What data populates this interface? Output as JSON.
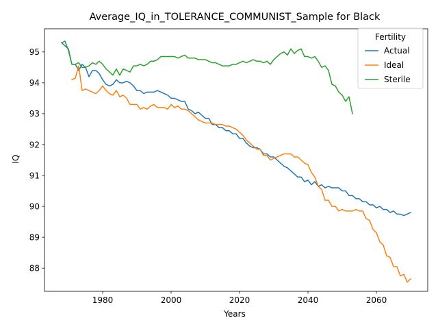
{
  "chart_data": {
    "type": "line",
    "title": "Average_IQ_in_TOLERANCE_COMMUNIST_Sample for Black",
    "xlabel": "Years",
    "ylabel": "IQ",
    "xlim": [
      1963,
      2075
    ],
    "ylim": [
      87.25,
      95.75
    ],
    "xticks": [
      1980,
      2000,
      2020,
      2040,
      2060
    ],
    "yticks": [
      88,
      89,
      90,
      91,
      92,
      93,
      94,
      95
    ],
    "grid": false,
    "legend": {
      "title": "Fertility",
      "position": "top-right"
    },
    "series": [
      {
        "name": "Actual",
        "color": "#1f77b4",
        "points": [
          [
            1968,
            95.3
          ],
          [
            1970,
            95.1
          ],
          [
            1971,
            94.6
          ],
          [
            1972,
            94.6
          ],
          [
            1973,
            94.4
          ],
          [
            1974,
            94.6
          ],
          [
            1975,
            94.5
          ],
          [
            1976,
            94.2
          ],
          [
            1977,
            94.4
          ],
          [
            1978,
            94.4
          ],
          [
            1979,
            94.3
          ],
          [
            1980,
            94.1
          ],
          [
            1981,
            93.95
          ],
          [
            1982,
            93.9
          ],
          [
            1983,
            93.95
          ],
          [
            1984,
            94.1
          ],
          [
            1985,
            94.0
          ],
          [
            1986,
            94.0
          ],
          [
            1987,
            94.05
          ],
          [
            1988,
            94.0
          ],
          [
            1989,
            93.9
          ],
          [
            1990,
            93.75
          ],
          [
            1991,
            93.75
          ],
          [
            1992,
            93.65
          ],
          [
            1993,
            93.7
          ],
          [
            1994,
            93.7
          ],
          [
            1995,
            93.7
          ],
          [
            1996,
            93.75
          ],
          [
            1997,
            93.7
          ],
          [
            1998,
            93.65
          ],
          [
            1999,
            93.6
          ],
          [
            2000,
            93.5
          ],
          [
            2001,
            93.5
          ],
          [
            2002,
            93.45
          ],
          [
            2003,
            93.4
          ],
          [
            2004,
            93.4
          ],
          [
            2005,
            93.15
          ],
          [
            2006,
            93.1
          ],
          [
            2007,
            93.0
          ],
          [
            2008,
            93.05
          ],
          [
            2009,
            92.95
          ],
          [
            2010,
            92.85
          ],
          [
            2011,
            92.85
          ],
          [
            2012,
            92.65
          ],
          [
            2013,
            92.65
          ],
          [
            2014,
            92.55
          ],
          [
            2015,
            92.55
          ],
          [
            2016,
            92.45
          ],
          [
            2017,
            92.45
          ],
          [
            2018,
            92.35
          ],
          [
            2019,
            92.35
          ],
          [
            2020,
            92.2
          ],
          [
            2021,
            92.2
          ],
          [
            2022,
            92.05
          ],
          [
            2023,
            91.95
          ],
          [
            2024,
            91.9
          ],
          [
            2025,
            91.9
          ],
          [
            2026,
            91.85
          ],
          [
            2027,
            91.7
          ],
          [
            2028,
            91.7
          ],
          [
            2029,
            91.6
          ],
          [
            2030,
            91.6
          ],
          [
            2031,
            91.5
          ],
          [
            2032,
            91.4
          ],
          [
            2033,
            91.3
          ],
          [
            2034,
            91.25
          ],
          [
            2035,
            91.15
          ],
          [
            2036,
            91.05
          ],
          [
            2037,
            90.95
          ],
          [
            2038,
            90.95
          ],
          [
            2039,
            90.8
          ],
          [
            2040,
            90.85
          ],
          [
            2041,
            90.7
          ],
          [
            2042,
            90.8
          ],
          [
            2043,
            90.65
          ],
          [
            2044,
            90.7
          ],
          [
            2045,
            90.6
          ],
          [
            2046,
            90.65
          ],
          [
            2047,
            90.6
          ],
          [
            2048,
            90.6
          ],
          [
            2049,
            90.6
          ],
          [
            2050,
            90.5
          ],
          [
            2051,
            90.5
          ],
          [
            2052,
            90.35
          ],
          [
            2053,
            90.35
          ],
          [
            2054,
            90.25
          ],
          [
            2055,
            90.25
          ],
          [
            2056,
            90.15
          ],
          [
            2057,
            90.15
          ],
          [
            2058,
            90.05
          ],
          [
            2059,
            90.05
          ],
          [
            2060,
            89.95
          ],
          [
            2061,
            90.0
          ],
          [
            2062,
            89.9
          ],
          [
            2063,
            89.9
          ],
          [
            2064,
            89.8
          ],
          [
            2065,
            89.85
          ],
          [
            2066,
            89.75
          ],
          [
            2067,
            89.75
          ],
          [
            2068,
            89.7
          ],
          [
            2069,
            89.75
          ],
          [
            2070,
            89.8
          ]
        ]
      },
      {
        "name": "Ideal",
        "color": "#ff7f0e",
        "points": [
          [
            1971,
            94.1
          ],
          [
            1972,
            94.15
          ],
          [
            1973,
            94.55
          ],
          [
            1974,
            93.75
          ],
          [
            1975,
            93.8
          ],
          [
            1976,
            93.75
          ],
          [
            1977,
            93.7
          ],
          [
            1978,
            93.65
          ],
          [
            1979,
            93.75
          ],
          [
            1980,
            93.9
          ],
          [
            1981,
            93.75
          ],
          [
            1982,
            93.65
          ],
          [
            1983,
            93.6
          ],
          [
            1984,
            93.75
          ],
          [
            1985,
            93.55
          ],
          [
            1986,
            93.6
          ],
          [
            1987,
            93.5
          ],
          [
            1988,
            93.3
          ],
          [
            1989,
            93.3
          ],
          [
            1990,
            93.3
          ],
          [
            1991,
            93.15
          ],
          [
            1992,
            93.2
          ],
          [
            1993,
            93.15
          ],
          [
            1994,
            93.25
          ],
          [
            1995,
            93.3
          ],
          [
            1996,
            93.2
          ],
          [
            1997,
            93.2
          ],
          [
            1998,
            93.2
          ],
          [
            1999,
            93.15
          ],
          [
            2000,
            93.3
          ],
          [
            2001,
            93.2
          ],
          [
            2002,
            93.25
          ],
          [
            2003,
            93.15
          ],
          [
            2004,
            93.15
          ],
          [
            2005,
            93.1
          ],
          [
            2006,
            93.0
          ],
          [
            2007,
            92.9
          ],
          [
            2008,
            92.8
          ],
          [
            2009,
            92.75
          ],
          [
            2010,
            92.7
          ],
          [
            2011,
            92.7
          ],
          [
            2012,
            92.7
          ],
          [
            2013,
            92.65
          ],
          [
            2014,
            92.65
          ],
          [
            2015,
            92.65
          ],
          [
            2016,
            92.6
          ],
          [
            2017,
            92.6
          ],
          [
            2018,
            92.55
          ],
          [
            2019,
            92.5
          ],
          [
            2020,
            92.4
          ],
          [
            2021,
            92.3
          ],
          [
            2022,
            92.15
          ],
          [
            2023,
            92.05
          ],
          [
            2024,
            91.95
          ],
          [
            2025,
            91.85
          ],
          [
            2026,
            91.85
          ],
          [
            2027,
            91.65
          ],
          [
            2028,
            91.65
          ],
          [
            2029,
            91.5
          ],
          [
            2030,
            91.55
          ],
          [
            2031,
            91.6
          ],
          [
            2032,
            91.65
          ],
          [
            2033,
            91.7
          ],
          [
            2034,
            91.7
          ],
          [
            2035,
            91.7
          ],
          [
            2036,
            91.6
          ],
          [
            2037,
            91.6
          ],
          [
            2038,
            91.5
          ],
          [
            2039,
            91.4
          ],
          [
            2040,
            91.35
          ],
          [
            2041,
            91.1
          ],
          [
            2042,
            90.95
          ],
          [
            2043,
            90.65
          ],
          [
            2044,
            90.55
          ],
          [
            2045,
            90.2
          ],
          [
            2046,
            90.2
          ],
          [
            2047,
            90.0
          ],
          [
            2048,
            90.0
          ],
          [
            2049,
            89.85
          ],
          [
            2050,
            89.9
          ],
          [
            2051,
            89.85
          ],
          [
            2052,
            89.85
          ],
          [
            2053,
            89.85
          ],
          [
            2054,
            89.9
          ],
          [
            2055,
            89.85
          ],
          [
            2056,
            89.85
          ],
          [
            2057,
            89.6
          ],
          [
            2058,
            89.55
          ],
          [
            2059,
            89.25
          ],
          [
            2060,
            89.15
          ],
          [
            2061,
            88.85
          ],
          [
            2062,
            88.75
          ],
          [
            2063,
            88.4
          ],
          [
            2064,
            88.35
          ],
          [
            2065,
            88.05
          ],
          [
            2066,
            88.05
          ],
          [
            2067,
            87.75
          ],
          [
            2068,
            87.8
          ],
          [
            2069,
            87.55
          ],
          [
            2070,
            87.65
          ]
        ]
      },
      {
        "name": "Sterile",
        "color": "#2ca02c",
        "points": [
          [
            1968,
            95.3
          ],
          [
            1969,
            95.35
          ],
          [
            1970,
            95.05
          ],
          [
            1971,
            94.6
          ],
          [
            1972,
            94.6
          ],
          [
            1973,
            94.65
          ],
          [
            1974,
            94.5
          ],
          [
            1975,
            94.5
          ],
          [
            1976,
            94.55
          ],
          [
            1977,
            94.65
          ],
          [
            1978,
            94.6
          ],
          [
            1979,
            94.7
          ],
          [
            1980,
            94.6
          ],
          [
            1981,
            94.45
          ],
          [
            1982,
            94.35
          ],
          [
            1983,
            94.25
          ],
          [
            1984,
            94.45
          ],
          [
            1985,
            94.25
          ],
          [
            1986,
            94.45
          ],
          [
            1987,
            94.4
          ],
          [
            1988,
            94.35
          ],
          [
            1989,
            94.55
          ],
          [
            1990,
            94.55
          ],
          [
            1991,
            94.6
          ],
          [
            1992,
            94.55
          ],
          [
            1993,
            94.6
          ],
          [
            1994,
            94.7
          ],
          [
            1995,
            94.7
          ],
          [
            1996,
            94.75
          ],
          [
            1997,
            94.85
          ],
          [
            1998,
            94.85
          ],
          [
            1999,
            94.85
          ],
          [
            2000,
            94.85
          ],
          [
            2001,
            94.85
          ],
          [
            2002,
            94.8
          ],
          [
            2003,
            94.85
          ],
          [
            2004,
            94.9
          ],
          [
            2005,
            94.8
          ],
          [
            2006,
            94.8
          ],
          [
            2007,
            94.8
          ],
          [
            2008,
            94.75
          ],
          [
            2009,
            94.75
          ],
          [
            2010,
            94.75
          ],
          [
            2011,
            94.7
          ],
          [
            2012,
            94.65
          ],
          [
            2013,
            94.65
          ],
          [
            2014,
            94.6
          ],
          [
            2015,
            94.55
          ],
          [
            2016,
            94.55
          ],
          [
            2017,
            94.55
          ],
          [
            2018,
            94.6
          ],
          [
            2019,
            94.6
          ],
          [
            2020,
            94.65
          ],
          [
            2021,
            94.7
          ],
          [
            2022,
            94.65
          ],
          [
            2023,
            94.7
          ],
          [
            2024,
            94.75
          ],
          [
            2025,
            94.7
          ],
          [
            2026,
            94.7
          ],
          [
            2027,
            94.65
          ],
          [
            2028,
            94.7
          ],
          [
            2029,
            94.6
          ],
          [
            2030,
            94.75
          ],
          [
            2031,
            94.85
          ],
          [
            2032,
            94.95
          ],
          [
            2033,
            95.0
          ],
          [
            2034,
            94.9
          ],
          [
            2035,
            95.1
          ],
          [
            2036,
            94.95
          ],
          [
            2037,
            95.05
          ],
          [
            2038,
            95.1
          ],
          [
            2039,
            94.85
          ],
          [
            2040,
            94.85
          ],
          [
            2041,
            94.8
          ],
          [
            2042,
            94.85
          ],
          [
            2043,
            94.7
          ],
          [
            2044,
            94.5
          ],
          [
            2045,
            94.55
          ],
          [
            2046,
            94.4
          ],
          [
            2047,
            93.95
          ],
          [
            2048,
            93.9
          ],
          [
            2049,
            93.7
          ],
          [
            2050,
            93.6
          ],
          [
            2051,
            93.4
          ],
          [
            2052,
            93.55
          ],
          [
            2053,
            93.0
          ]
        ]
      }
    ]
  }
}
